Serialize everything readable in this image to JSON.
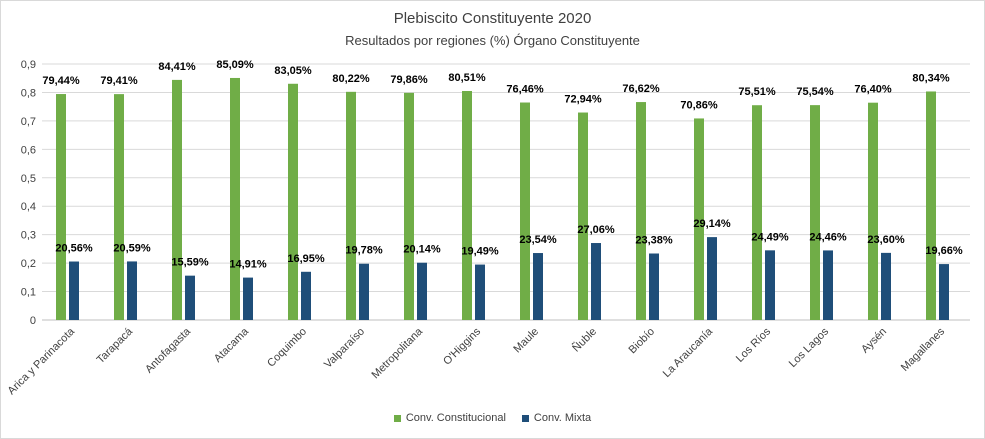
{
  "chart_data": {
    "type": "bar",
    "title": "Plebiscito Constituyente 2020",
    "subtitle": "Resultados por regiones (%) Órgano Constituyente",
    "categories": [
      "Arica y Parinacota",
      "Tarapacá",
      "Antofagasta",
      "Atacama",
      "Coquimbo",
      "Valparaíso",
      "Metropolitana",
      "O'Higgins",
      "Maule",
      "Ñuble",
      "Biobío",
      "La Araucanía",
      "Los Ríos",
      "Los Lagos",
      "Aysén",
      "Magallanes"
    ],
    "series": [
      {
        "name": "Conv. Constitucional",
        "color": "#70ad47",
        "values": [
          0.7944,
          0.7941,
          0.8441,
          0.8509,
          0.8305,
          0.8022,
          0.7986,
          0.8051,
          0.7646,
          0.7294,
          0.7662,
          0.7086,
          0.7551,
          0.7554,
          0.764,
          0.8034
        ],
        "labels": [
          "79,44%",
          "79,41%",
          "84,41%",
          "85,09%",
          "83,05%",
          "80,22%",
          "79,86%",
          "80,51%",
          "76,46%",
          "72,94%",
          "76,62%",
          "70,86%",
          "75,51%",
          "75,54%",
          "76,40%",
          "80,34%"
        ]
      },
      {
        "name": "Conv. Mixta",
        "color": "#1f4e79",
        "values": [
          0.2056,
          0.2059,
          0.1559,
          0.1491,
          0.1695,
          0.1978,
          0.2014,
          0.1949,
          0.2354,
          0.2706,
          0.2338,
          0.2914,
          0.2449,
          0.2446,
          0.236,
          0.1966
        ],
        "labels": [
          "20,56%",
          "20,59%",
          "15,59%",
          "14,91%",
          "16,95%",
          "19,78%",
          "20,14%",
          "19,49%",
          "23,54%",
          "27,06%",
          "23,38%",
          "29,14%",
          "24,49%",
          "24,46%",
          "23,60%",
          "19,66%"
        ]
      }
    ],
    "ylim": [
      0,
      0.9
    ],
    "yticks": [
      "0",
      "0,1",
      "0,2",
      "0,3",
      "0,4",
      "0,5",
      "0,6",
      "0,7",
      "0,8",
      "0,9"
    ],
    "grid": true,
    "legend": "bottom"
  }
}
